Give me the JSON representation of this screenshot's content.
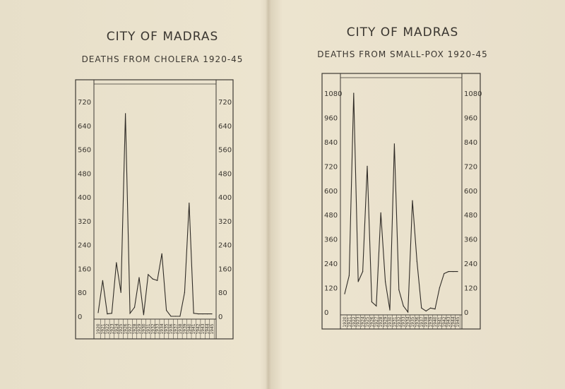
{
  "chart_data": [
    {
      "type": "line",
      "title": "CITY OF MADRAS",
      "subtitle": "DEATHS FROM CHOLERA 1920-45",
      "ylim": [
        0,
        720
      ],
      "yticks": [
        "720",
        "640",
        "560",
        "480",
        "400",
        "320",
        "240",
        "160",
        "80",
        "0"
      ],
      "ytick_values": [
        720,
        640,
        560,
        480,
        400,
        320,
        240,
        160,
        80,
        0
      ],
      "x": [
        "1920",
        "1921",
        "1922",
        "1923",
        "1924",
        "1925",
        "1926",
        "1927",
        "1928",
        "1929",
        "1930",
        "1931",
        "1932",
        "1933",
        "1934",
        "1935",
        "1936",
        "1937",
        "1938",
        "1939",
        "1940",
        "1941",
        "1942",
        "1943",
        "1944",
        "1945"
      ],
      "values": [
        12,
        120,
        8,
        10,
        180,
        80,
        680,
        10,
        30,
        130,
        5,
        140,
        125,
        120,
        210,
        20,
        0,
        0,
        0,
        80,
        380,
        10,
        8,
        8,
        8,
        8
      ],
      "grid": false
    },
    {
      "type": "line",
      "title": "CITY OF MADRAS",
      "subtitle": "DEATHS FROM SMALL-POX 1920-45",
      "ylim": [
        0,
        1080
      ],
      "yticks": [
        "1080",
        "960",
        "840",
        "720",
        "600",
        "480",
        "360",
        "240",
        "120",
        "0"
      ],
      "ytick_values": [
        1080,
        960,
        840,
        720,
        600,
        480,
        360,
        240,
        120,
        0
      ],
      "x": [
        "1920",
        "1921",
        "1922",
        "1923",
        "1924",
        "1925",
        "1926",
        "1927",
        "1928",
        "1929",
        "1930",
        "1931",
        "1932",
        "1933",
        "1934",
        "1935",
        "1936",
        "1937",
        "1938",
        "1939",
        "1940",
        "1941",
        "1942",
        "1943",
        "1944",
        "1945"
      ],
      "values": [
        90,
        180,
        1080,
        150,
        200,
        720,
        50,
        30,
        490,
        150,
        10,
        830,
        110,
        30,
        0,
        550,
        250,
        20,
        5,
        20,
        15,
        120,
        190,
        200,
        200,
        200
      ],
      "grid": false
    }
  ]
}
